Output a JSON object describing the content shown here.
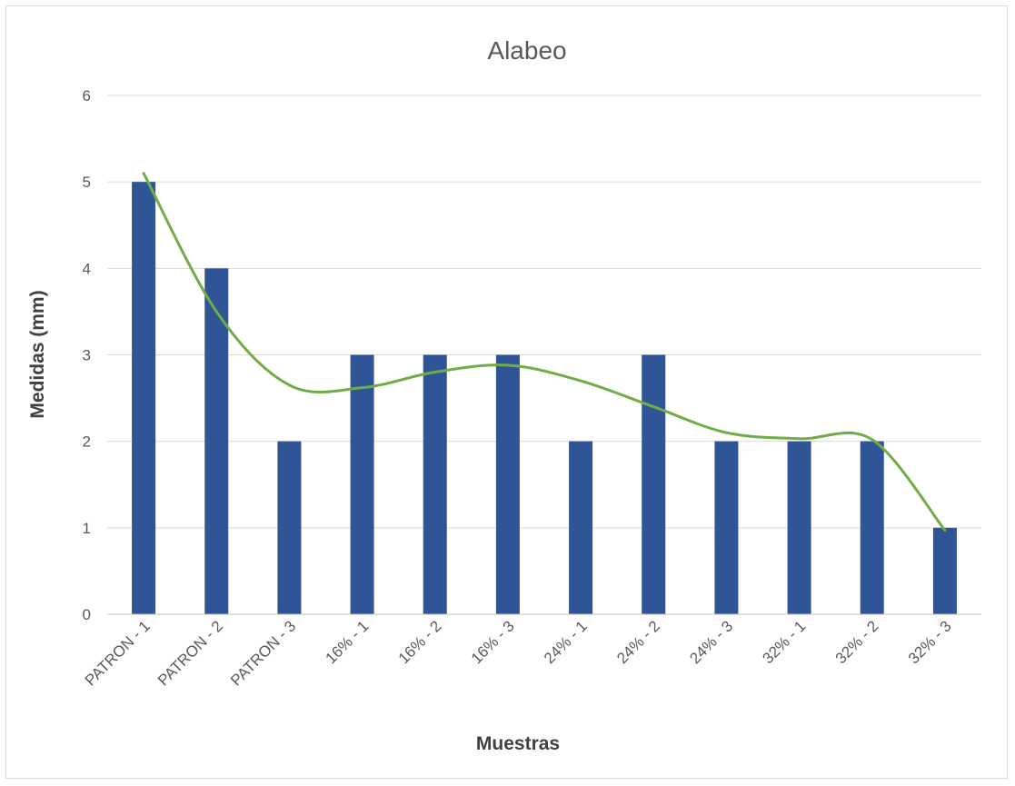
{
  "chart_data": {
    "type": "bar",
    "title": "Alabeo",
    "xlabel": "Muestras",
    "ylabel": "Medidas (mm)",
    "ylim": [
      0,
      6
    ],
    "yticks": [
      0,
      1,
      2,
      3,
      4,
      5,
      6
    ],
    "categories": [
      "PATRON - 1",
      "PATRON - 2",
      "PATRON - 3",
      "16% - 1",
      "16% - 2",
      "16% - 3",
      "24% - 1",
      "24% - 2",
      "24% - 3",
      "32% - 1",
      "32% - 2",
      "32% - 3"
    ],
    "series": [
      {
        "type": "bar",
        "values": [
          5,
          4,
          2,
          3,
          3,
          3,
          2,
          3,
          2,
          2,
          2,
          1
        ],
        "color": "#2f5597"
      },
      {
        "type": "line",
        "smooth": true,
        "values": [
          5.1,
          3.5,
          2.65,
          2.62,
          2.8,
          2.88,
          2.7,
          2.4,
          2.1,
          2.03,
          2.02,
          0.97
        ],
        "color": "#70ad47"
      }
    ],
    "grid": true,
    "legend": "none"
  }
}
